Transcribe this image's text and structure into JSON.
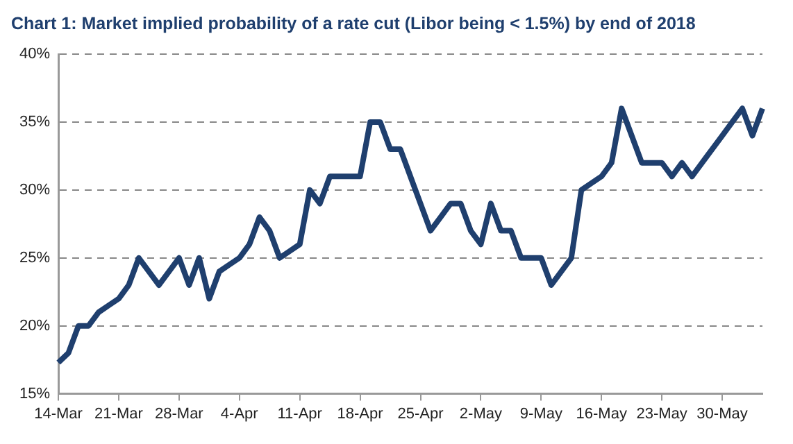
{
  "chart_data": {
    "type": "line",
    "title": "Chart 1: Market implied probability of a rate cut (Libor being < 1.5%) by end of 2018",
    "categories": [
      "14-Mar",
      null,
      null,
      null,
      null,
      null,
      "21-Mar",
      null,
      null,
      null,
      null,
      null,
      "28-Mar",
      null,
      null,
      null,
      null,
      null,
      "4-Apr",
      null,
      null,
      null,
      null,
      null,
      "11-Apr",
      null,
      null,
      null,
      null,
      null,
      "18-Apr",
      null,
      null,
      null,
      null,
      null,
      "25-Apr",
      null,
      null,
      null,
      null,
      null,
      "2-May",
      null,
      null,
      null,
      null,
      null,
      "9-May",
      null,
      null,
      null,
      null,
      null,
      "16-May",
      null,
      null,
      null,
      null,
      null,
      "23-May",
      null,
      null,
      null,
      null,
      null,
      "30-May",
      null,
      null,
      null,
      null
    ],
    "series": [
      {
        "color": "#1f3f6e",
        "values": [
          17.3,
          18,
          20,
          20,
          21,
          21.5,
          22,
          23,
          25,
          24,
          23,
          24,
          25,
          23,
          25,
          22,
          24,
          24.5,
          25,
          26,
          28,
          27,
          25,
          25.5,
          26,
          30,
          29,
          31,
          31,
          31,
          31,
          35,
          35,
          33,
          33,
          31,
          29,
          27,
          28,
          29,
          29,
          27,
          26,
          29,
          27,
          27,
          25,
          25,
          25,
          23,
          24,
          25,
          30,
          30.5,
          31,
          32,
          36,
          34,
          32,
          32,
          32,
          31,
          32,
          31,
          32,
          33,
          34,
          35,
          36,
          34,
          36
        ]
      }
    ],
    "ylim": [
      15,
      40
    ],
    "yticks": [
      {
        "value": 15,
        "label": "15%"
      },
      {
        "value": 20,
        "label": "20%"
      },
      {
        "value": 25,
        "label": "25%"
      },
      {
        "value": 30,
        "label": "30%"
      },
      {
        "value": 35,
        "label": "35%"
      },
      {
        "value": 40,
        "label": "40%"
      }
    ],
    "grid": "y",
    "legend": false,
    "marker": "none",
    "line_style": "solid"
  }
}
